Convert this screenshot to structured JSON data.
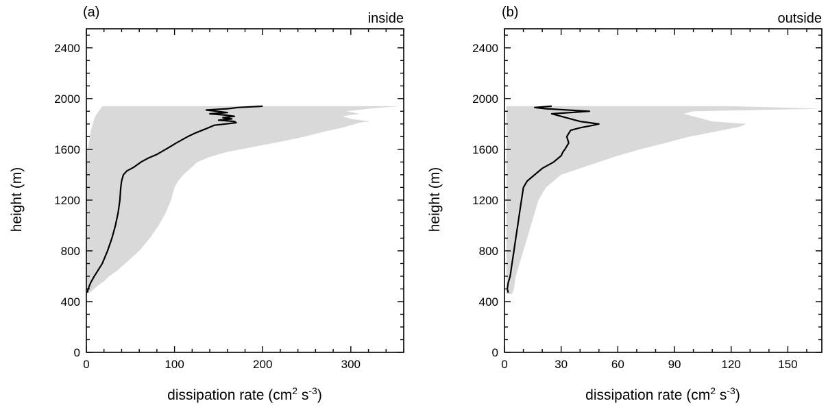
{
  "chart_data": [
    {
      "type": "area",
      "panel_label": "(a)",
      "title": "inside",
      "xlabel": "dissipation rate (cm² s⁻³)",
      "xlabel_base": "dissipation rate (cm",
      "xlabel_sup1": "2",
      "xlabel_mid": " s",
      "xlabel_sup2": "-3",
      "xlabel_end": ")",
      "ylabel": "height (m)",
      "xlim": [
        0,
        360
      ],
      "ylim": [
        0,
        2550
      ],
      "xticks": [
        0,
        100,
        200,
        300
      ],
      "xtick_labels": [
        "0",
        "100",
        "200",
        "300"
      ],
      "yticks": [
        0,
        400,
        800,
        1200,
        1600,
        2000,
        2400
      ],
      "ytick_labels": [
        "0",
        "400",
        "800",
        "1200",
        "1600",
        "2000",
        "2400"
      ],
      "x_minor_step": 20,
      "y_minor_step": 100,
      "grid": false,
      "band_color": "#d9d9d9",
      "line_color": "#000000",
      "series": [
        {
          "kind": "range",
          "height": [
            470,
            520,
            560,
            600,
            650,
            700,
            800,
            900,
            1000,
            1100,
            1200,
            1300,
            1350,
            1400,
            1450,
            1500,
            1540,
            1580,
            1620,
            1660,
            1700,
            1740,
            1770,
            1790,
            1810,
            1820,
            1840,
            1860,
            1880,
            1900,
            1920,
            1940
          ],
          "low": [
            0,
            0,
            0,
            0,
            0,
            0,
            0,
            0,
            0,
            0,
            0,
            0,
            0,
            0,
            0,
            0,
            0,
            0,
            2,
            3,
            4,
            5,
            6,
            7,
            8,
            8,
            9,
            10,
            12,
            14,
            16,
            18
          ],
          "high": [
            4,
            12,
            20,
            26,
            36,
            44,
            60,
            72,
            82,
            90,
            96,
            100,
            104,
            110,
            118,
            126,
            140,
            160,
            190,
            220,
            248,
            270,
            290,
            300,
            310,
            322,
            300,
            290,
            310,
            295,
            320,
            355
          ]
        },
        {
          "kind": "line",
          "height": [
            470,
            500,
            550,
            600,
            700,
            800,
            900,
            1000,
            1100,
            1200,
            1300,
            1350,
            1400,
            1430,
            1460,
            1500,
            1530,
            1560,
            1600,
            1650,
            1700,
            1730,
            1760,
            1790,
            1800,
            1810,
            1820,
            1830,
            1840,
            1850,
            1860,
            1870,
            1880,
            1890,
            1900,
            1910,
            1920,
            1930,
            1940
          ],
          "value": [
            1,
            2,
            5,
            9,
            18,
            24,
            29,
            33,
            36,
            38,
            39,
            40,
            42,
            46,
            54,
            62,
            70,
            80,
            90,
            102,
            115,
            124,
            135,
            145,
            158,
            170,
            168,
            150,
            165,
            155,
            168,
            158,
            140,
            160,
            148,
            136,
            160,
            172,
            200
          ]
        }
      ]
    },
    {
      "type": "area",
      "panel_label": "(b)",
      "title": "outside",
      "xlabel": "dissipation rate (cm² s⁻³)",
      "xlabel_base": "dissipation rate (cm",
      "xlabel_sup1": "2",
      "xlabel_mid": " s",
      "xlabel_sup2": "-3",
      "xlabel_end": ")",
      "ylabel": "height (m)",
      "xlim": [
        0,
        168
      ],
      "ylim": [
        0,
        2550
      ],
      "xticks": [
        0,
        30,
        60,
        90,
        120,
        150
      ],
      "xtick_labels": [
        "0",
        "30",
        "60",
        "90",
        "120",
        "150"
      ],
      "yticks": [
        0,
        400,
        800,
        1200,
        1600,
        2000,
        2400
      ],
      "ytick_labels": [
        "0",
        "400",
        "800",
        "1200",
        "1600",
        "2000",
        "2400"
      ],
      "x_minor_step": 10,
      "y_minor_step": 100,
      "grid": false,
      "band_color": "#d9d9d9",
      "line_color": "#000000",
      "series": [
        {
          "kind": "range",
          "height": [
            460,
            500,
            600,
            700,
            800,
            900,
            1000,
            1100,
            1200,
            1300,
            1400,
            1450,
            1500,
            1550,
            1600,
            1650,
            1700,
            1750,
            1780,
            1800,
            1820,
            1840,
            1860,
            1880,
            1900,
            1920,
            1940
          ],
          "low": [
            1,
            1,
            1,
            1,
            1,
            1,
            1,
            1,
            1,
            1,
            1,
            1,
            1,
            1,
            1,
            1,
            1,
            1,
            1,
            1,
            1,
            1,
            1,
            1,
            1,
            1,
            1
          ],
          "high": [
            4,
            5,
            6,
            8,
            10,
            12,
            14,
            16,
            18,
            22,
            30,
            40,
            50,
            60,
            72,
            85,
            98,
            115,
            125,
            128,
            110,
            105,
            100,
            95,
            100,
            168,
            120
          ]
        },
        {
          "kind": "line",
          "height": [
            470,
            500,
            550,
            600,
            700,
            800,
            900,
            1000,
            1100,
            1200,
            1300,
            1350,
            1400,
            1450,
            1500,
            1550,
            1580,
            1600,
            1650,
            1700,
            1750,
            1770,
            1790,
            1800,
            1810,
            1820,
            1840,
            1860,
            1880,
            1900,
            1920,
            1930,
            1940
          ],
          "value": [
            2,
            1.5,
            2,
            3,
            4,
            5,
            6,
            7,
            8,
            9,
            10,
            12,
            16,
            20,
            26,
            30,
            31,
            32,
            34,
            33,
            35,
            40,
            47,
            50,
            45,
            40,
            35,
            30,
            25,
            45,
            22,
            16,
            25
          ]
        }
      ]
    }
  ]
}
